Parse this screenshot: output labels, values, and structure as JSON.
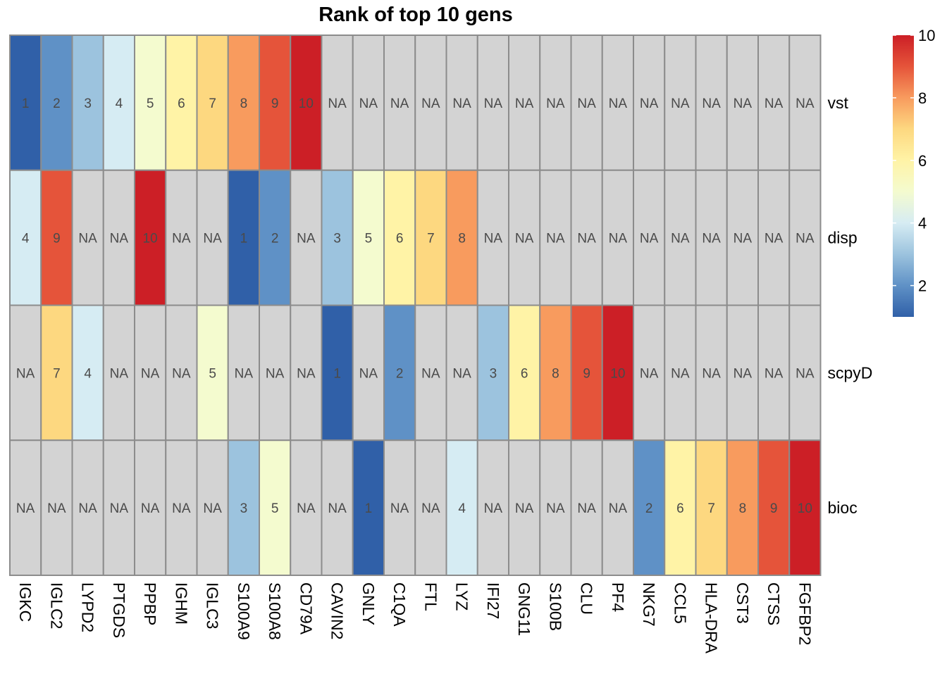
{
  "chart_data": {
    "type": "heatmap",
    "title": "Rank of top 10 gens",
    "rows": [
      "vst",
      "disp",
      "scpyD",
      "bioc"
    ],
    "columns": [
      "IGKC",
      "IGLC2",
      "LYPD2",
      "PTGDS",
      "PPBP",
      "IGHM",
      "IGLC3",
      "S100A9",
      "S100A8",
      "CD79A",
      "CAVIN2",
      "GNLY",
      "C1QA",
      "FTL",
      "LYZ",
      "IFI27",
      "GNG11",
      "S100B",
      "CLU",
      "PF4",
      "NKG7",
      "CCL5",
      "HLA-DRA",
      "CST3",
      "CTSS",
      "FGFBP2"
    ],
    "values": [
      [
        1,
        2,
        3,
        4,
        5,
        6,
        7,
        8,
        9,
        10,
        null,
        null,
        null,
        null,
        null,
        null,
        null,
        null,
        null,
        null,
        null,
        null,
        null,
        null,
        null,
        null
      ],
      [
        4,
        9,
        null,
        null,
        10,
        null,
        null,
        1,
        2,
        null,
        3,
        5,
        6,
        7,
        8,
        null,
        null,
        null,
        null,
        null,
        null,
        null,
        null,
        null,
        null,
        null
      ],
      [
        null,
        7,
        4,
        null,
        null,
        null,
        5,
        null,
        null,
        null,
        1,
        null,
        2,
        null,
        null,
        3,
        6,
        8,
        9,
        10,
        null,
        null,
        null,
        null,
        null,
        null
      ],
      [
        null,
        null,
        null,
        null,
        null,
        null,
        null,
        3,
        5,
        null,
        null,
        1,
        null,
        null,
        4,
        null,
        null,
        null,
        null,
        null,
        2,
        6,
        7,
        8,
        9,
        10
      ]
    ],
    "na_label": "NA",
    "na_color": "#d3d3d3",
    "border_color": "#8c8c8c",
    "value_range": [
      1,
      10
    ],
    "color_scale": [
      "#3060a8",
      "#5f91c6",
      "#9cc3de",
      "#d6ecf3",
      "#f4fbcf",
      "#fff3a6",
      "#fdd880",
      "#f89b5e",
      "#e5543a",
      "#cc1f26"
    ],
    "legend": {
      "position": "right",
      "ticks": [
        2,
        4,
        6,
        8,
        10
      ]
    }
  }
}
